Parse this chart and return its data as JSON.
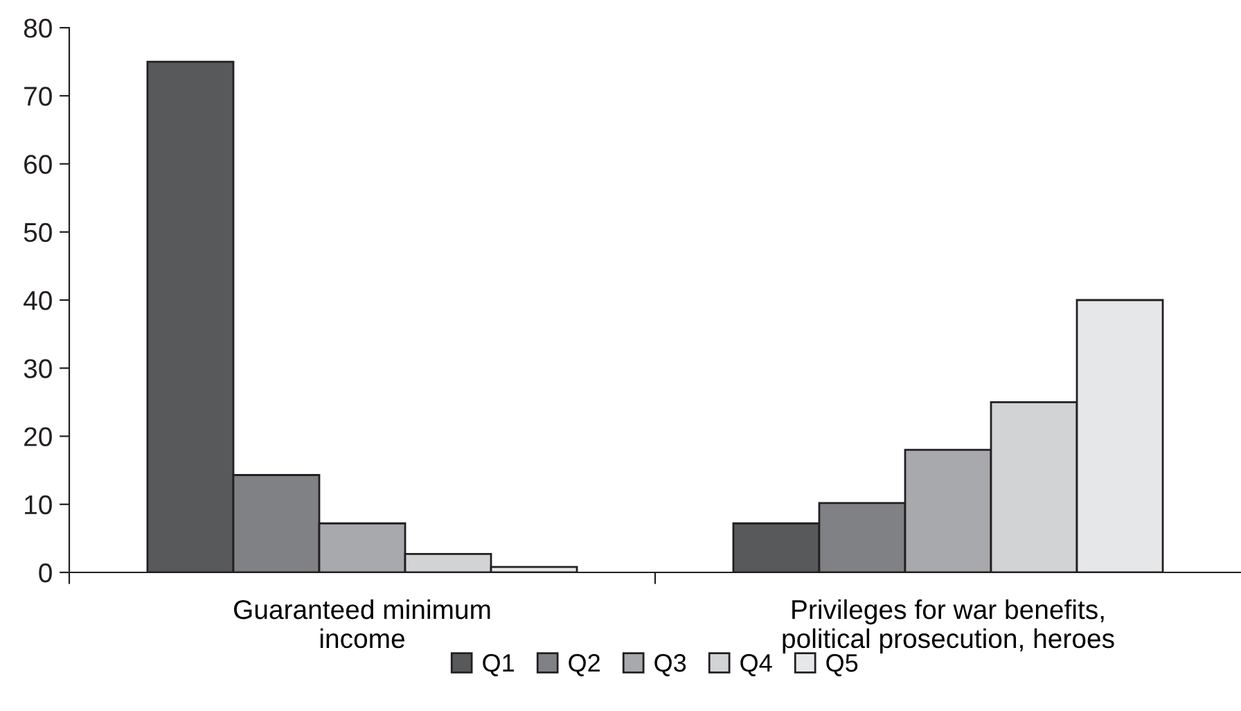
{
  "chart_data": {
    "type": "bar",
    "categories": [
      "Guaranteed minimum\nincome",
      "Privileges for war benefits,\npolitical prosecution, heroes"
    ],
    "series": [
      {
        "name": "Q1",
        "color": "#58595b",
        "values": [
          75,
          7.2
        ]
      },
      {
        "name": "Q2",
        "color": "#808184",
        "values": [
          14.3,
          10.2
        ]
      },
      {
        "name": "Q3",
        "color": "#a7a9ac",
        "values": [
          7.2,
          18
        ]
      },
      {
        "name": "Q4",
        "color": "#d1d3d4",
        "values": [
          2.7,
          25
        ]
      },
      {
        "name": "Q5",
        "color": "#e6e7e8",
        "values": [
          0.8,
          40
        ]
      }
    ],
    "ylim": [
      0,
      80
    ],
    "yticks": [
      0,
      10,
      20,
      30,
      40,
      50,
      60,
      70,
      80
    ],
    "grid": false,
    "legend": "bottom"
  }
}
